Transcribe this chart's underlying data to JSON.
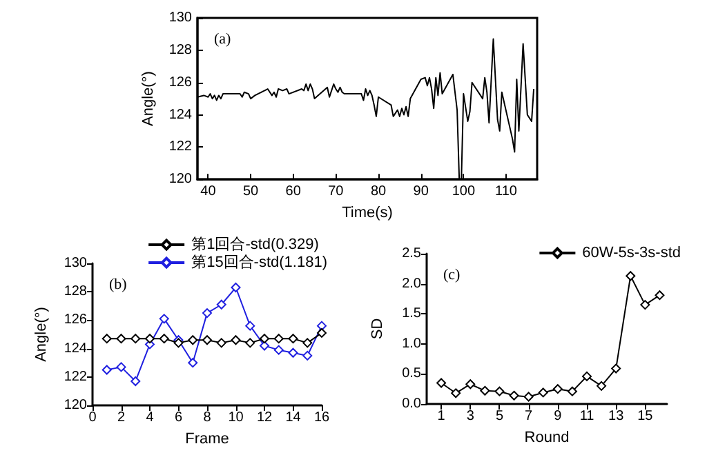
{
  "chart_data": [
    {
      "type": "line",
      "xlabel": "Time(s)",
      "ylabel": "Angle(°)",
      "annotations": [
        "(a)"
      ],
      "marker": "none",
      "x": [
        37.5,
        39,
        40,
        40.5,
        41,
        41.5,
        42,
        42.5,
        43,
        43.5,
        47.5,
        48,
        48.5,
        49.5,
        50,
        51,
        54,
        55,
        55.5,
        56,
        56.5,
        57.5,
        58.5,
        59,
        62,
        62.5,
        63,
        63.5,
        64,
        64.5,
        65,
        68,
        68.5,
        69.5,
        70,
        70.5,
        71,
        71.5,
        72,
        76,
        76.5,
        77,
        77.5,
        78,
        78.5,
        79,
        79.5,
        80,
        83,
        83.5,
        84.5,
        85,
        85.5,
        86,
        86.5,
        87,
        87.5,
        90,
        91,
        91.5,
        92,
        92.5,
        93,
        93.5,
        94,
        94.5,
        95,
        97.5,
        98.5,
        99,
        99.5,
        100,
        101,
        101.5,
        102,
        104.5,
        105,
        105.5,
        106,
        107,
        108,
        108.5,
        109,
        111.5,
        112,
        112.5,
        113,
        114,
        115,
        116,
        116.5
      ],
      "series": [
        {
          "color": "#000000",
          "values": [
            125.1,
            125.2,
            125.1,
            125.3,
            125.0,
            125.2,
            124.9,
            125.2,
            125.0,
            125.3,
            125.3,
            125.1,
            125.4,
            125.3,
            125.0,
            125.2,
            125.6,
            125.2,
            125.4,
            125.1,
            125.6,
            125.5,
            125.6,
            125.3,
            125.6,
            125.5,
            125.9,
            125.5,
            125.9,
            125.6,
            125.0,
            125.7,
            125.1,
            125.9,
            125.6,
            125.4,
            125.7,
            125.4,
            125.3,
            125.3,
            124.9,
            125.6,
            125.2,
            125.5,
            125.2,
            124.6,
            123.9,
            125.1,
            124.6,
            123.9,
            124.3,
            123.9,
            124.4,
            124.0,
            124.5,
            123.9,
            125.0,
            126.2,
            126.3,
            125.8,
            126.3,
            125.6,
            124.4,
            126.3,
            125.2,
            126.6,
            125.3,
            126.5,
            124.3,
            120.0,
            120.0,
            125.3,
            123.6,
            124.2,
            126.0,
            125.0,
            126.3,
            125.4,
            123.5,
            128.7,
            123.7,
            123.0,
            125.4,
            122.5,
            121.7,
            126.2,
            123.0,
            128.4,
            124.0,
            123.6,
            125.6
          ]
        }
      ],
      "xlim": [
        37.5,
        117.3
      ],
      "xticks": [
        40,
        50,
        60,
        70,
        80,
        90,
        100,
        110
      ],
      "ylim": [
        120,
        130
      ],
      "yticks": [
        120,
        122,
        124,
        126,
        128,
        130
      ]
    },
    {
      "type": "line",
      "xlabel": "Frame",
      "ylabel": "Angle(°)",
      "annotations": [
        "(b)"
      ],
      "marker": "diamond",
      "legend": "top right",
      "x": [
        1,
        2,
        3,
        4,
        5,
        6,
        7,
        8,
        9,
        10,
        11,
        12,
        13,
        14,
        15,
        16
      ],
      "series": [
        {
          "name": "第1回合-std(0.329)",
          "color": "#000000",
          "values": [
            124.7,
            124.7,
            124.7,
            124.7,
            124.7,
            124.4,
            124.6,
            124.6,
            124.4,
            124.6,
            124.4,
            124.7,
            124.7,
            124.7,
            124.4,
            125.1
          ]
        },
        {
          "name": "第15回合-std(1.181)",
          "color": "#1f1fe0",
          "values": [
            122.5,
            122.7,
            121.7,
            124.3,
            126.1,
            124.6,
            123.0,
            126.5,
            127.1,
            128.3,
            125.6,
            124.2,
            123.9,
            123.7,
            123.5,
            125.6
          ]
        }
      ],
      "xlim": [
        0,
        16
      ],
      "xticks": [
        0,
        2,
        4,
        6,
        8,
        10,
        12,
        14,
        16
      ],
      "ylim": [
        120,
        130
      ],
      "yticks": [
        120,
        122,
        124,
        126,
        128,
        130
      ]
    },
    {
      "type": "line",
      "xlabel": "Round",
      "ylabel": "SD",
      "annotations": [
        "(c)"
      ],
      "marker": "diamond",
      "legend": "top right",
      "x": [
        1,
        2,
        3,
        4,
        5,
        6,
        7,
        8,
        9,
        10,
        11,
        12,
        13,
        14,
        15,
        16
      ],
      "xlim": [
        0,
        16.5
      ],
      "xticks": [
        1,
        3,
        5,
        7,
        9,
        11,
        13,
        15
      ],
      "series": [
        {
          "name": "60W-5s-3s-std",
          "color": "#000000",
          "values": [
            0.35,
            0.18,
            0.33,
            0.22,
            0.21,
            0.14,
            0.12,
            0.19,
            0.25,
            0.21,
            0.46,
            0.3,
            0.59,
            2.13,
            1.65,
            1.81
          ]
        }
      ],
      "ylim": [
        0,
        2.5
      ],
      "yticks": [
        {
          "value": 0,
          "label": "0.0"
        },
        0.5,
        {
          "value": 1,
          "label": "1.0"
        },
        1.5,
        {
          "value": 2,
          "label": "2.0"
        },
        2.5
      ]
    }
  ]
}
